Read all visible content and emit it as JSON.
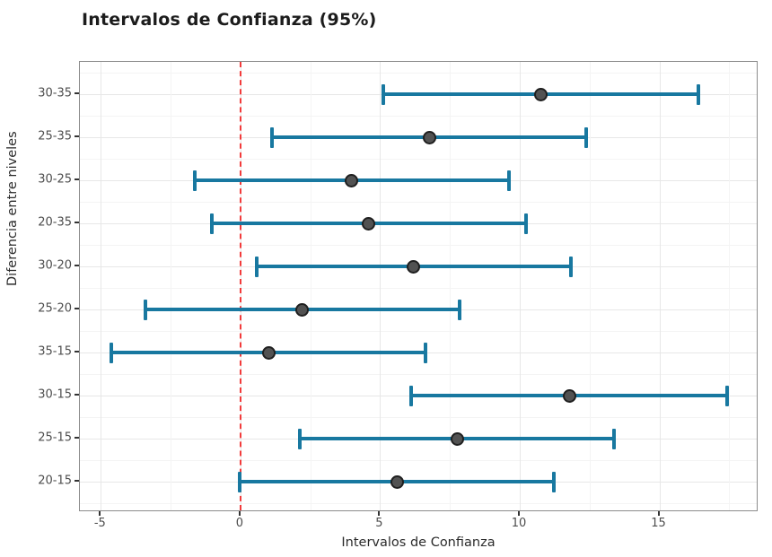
{
  "title": "Intervalos de Confianza (95%)",
  "chart_data": {
    "type": "scatter",
    "style": "horizontal_error_bars",
    "title": "Intervalos de Confianza (95%)",
    "xlabel": "Intervalos de Confianza",
    "ylabel": "Diferencia entre niveles",
    "xlim": [
      -5.75,
      18.55
    ],
    "x_major_ticks": [
      -5,
      0,
      5,
      10,
      15
    ],
    "x_major_tick_labels": [
      "-5",
      "0",
      "5",
      "10",
      "15"
    ],
    "x_minor_gridlines": [
      -2.5,
      2.5,
      7.5,
      12.5,
      17.5
    ],
    "grid": true,
    "legend": "none",
    "reference_line": {
      "x": 0,
      "style": "dashed",
      "color": "#f23b3b"
    },
    "categories": [
      "30-35",
      "25-35",
      "30-25",
      "20-35",
      "30-20",
      "25-20",
      "35-15",
      "30-15",
      "25-15",
      "20-15"
    ],
    "points": [
      {
        "label": "30-35",
        "estimate": 10.76,
        "lower": 5.13,
        "upper": 16.4
      },
      {
        "label": "25-35",
        "estimate": 6.76,
        "lower": 1.13,
        "upper": 12.39
      },
      {
        "label": "30-25",
        "estimate": 3.98,
        "lower": -1.64,
        "upper": 9.6
      },
      {
        "label": "20-35",
        "estimate": 4.58,
        "lower": -1.04,
        "upper": 10.21
      },
      {
        "label": "30-20",
        "estimate": 6.19,
        "lower": 0.57,
        "upper": 11.82
      },
      {
        "label": "25-20",
        "estimate": 2.22,
        "lower": -3.41,
        "upper": 7.85
      },
      {
        "label": "35-15",
        "estimate": 1.01,
        "lower": -4.62,
        "upper": 6.63
      },
      {
        "label": "30-15",
        "estimate": 11.77,
        "lower": 6.12,
        "upper": 17.42
      },
      {
        "label": "25-15",
        "estimate": 7.76,
        "lower": 2.13,
        "upper": 13.39
      },
      {
        "label": "20-15",
        "estimate": 5.6,
        "lower": -0.04,
        "upper": 11.23
      }
    ],
    "colors": {
      "errorbar": "#1878a0",
      "point_fill": "#525252",
      "point_stroke": "#1f1f1f",
      "reference": "#f23b3b",
      "grid_major": "#e7e7e7",
      "grid_minor": "#f4f4f4",
      "panel_border": "#8c8c8c",
      "tick": "#333333",
      "tick_text": "#4d4d4d"
    }
  }
}
